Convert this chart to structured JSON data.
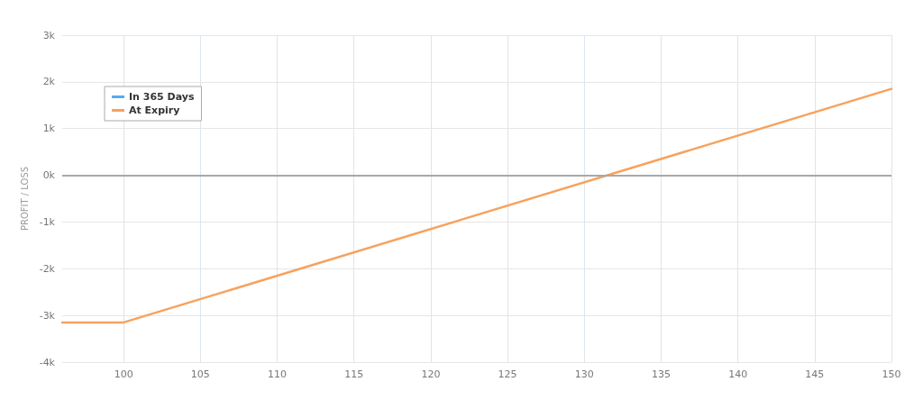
{
  "chart_data": {
    "type": "line",
    "ylabel": "PROFIT / LOSS",
    "xlim": [
      96,
      150
    ],
    "xticks": [
      100,
      105,
      110,
      115,
      120,
      125,
      130,
      135,
      140,
      145,
      150
    ],
    "ylim": [
      -4000,
      3000
    ],
    "yticks": [
      {
        "value": -4000,
        "label": "-4k"
      },
      {
        "value": -3000,
        "label": "-3k"
      },
      {
        "value": -2000,
        "label": "-2k"
      },
      {
        "value": -1000,
        "label": "-1k"
      },
      {
        "value": 0,
        "label": "0k"
      },
      {
        "value": 1000,
        "label": "1k"
      },
      {
        "value": 2000,
        "label": "2k"
      },
      {
        "value": 3000,
        "label": "3k"
      }
    ],
    "series": [
      {
        "name": "In 365 Days",
        "color": "#5aa9f0"
      },
      {
        "name": "At Expiry",
        "color": "#f7a25e",
        "x": [
          96,
          100,
          150
        ],
        "values": [
          -3150,
          -3150,
          1850
        ]
      }
    ],
    "ref_lines": [
      {
        "axis": "y",
        "value": 0,
        "color": "#a8a8a8"
      }
    ],
    "grid": true,
    "legend": "top left",
    "marker": "none",
    "line_style": "solid"
  }
}
